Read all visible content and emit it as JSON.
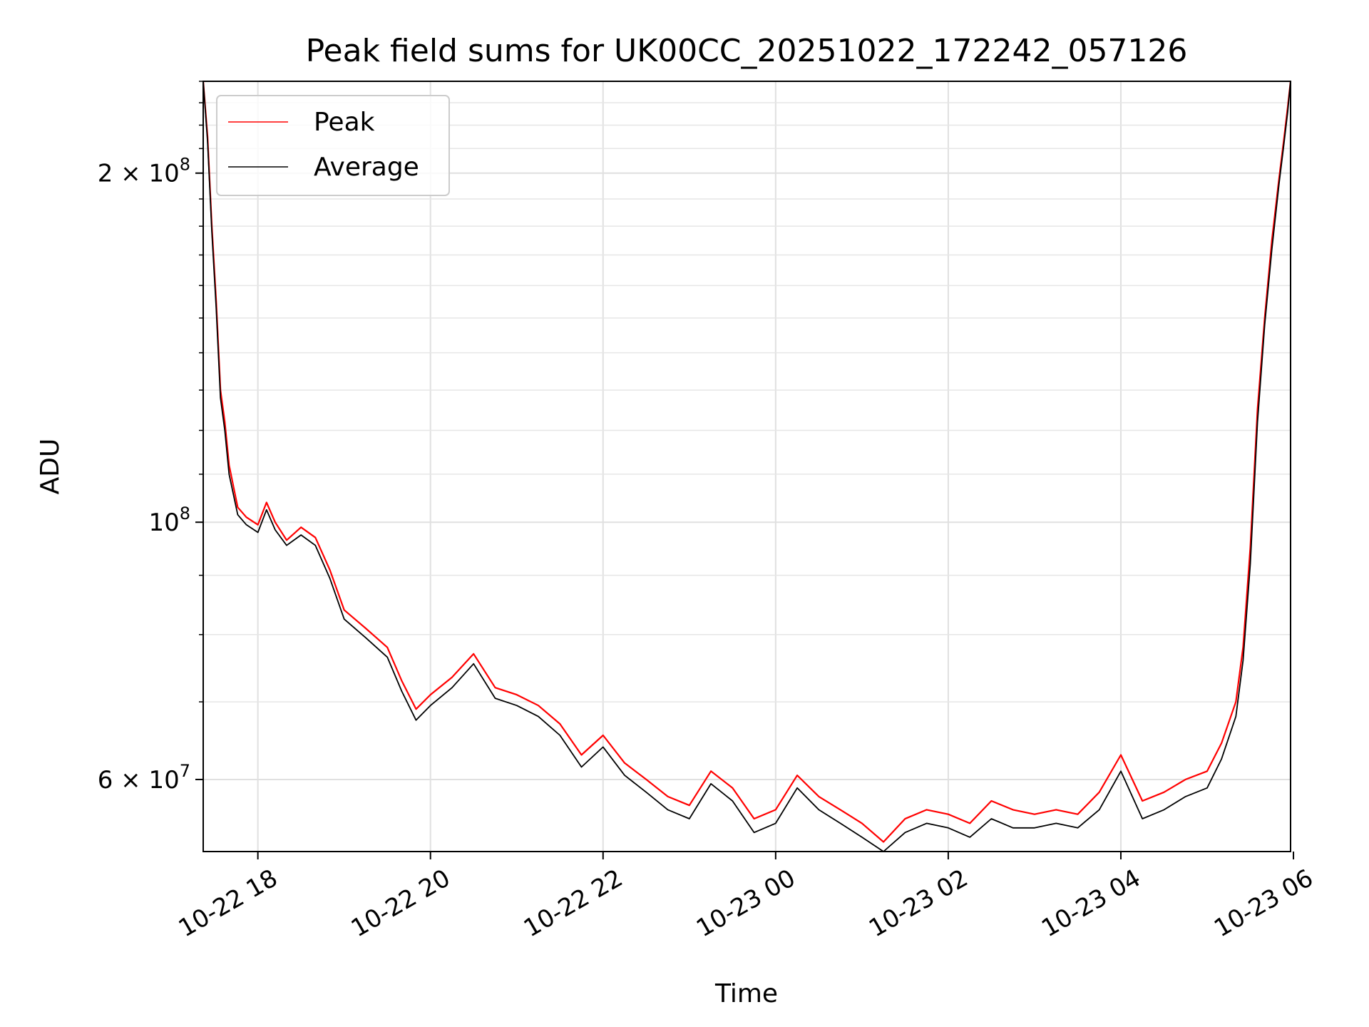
{
  "chart_data": {
    "type": "line",
    "title": "Peak field sums for UK00CC_20251022_172242_057126",
    "xlabel": "Time",
    "ylabel": "ADU",
    "y_scale": "log",
    "xlim": [
      "2025-10-22 17:22",
      "2025-10-23 05:58"
    ],
    "ylim": [
      52000000,
      240000000
    ],
    "grid": true,
    "legend": "upper-left",
    "x_ticks": [
      "10-22 18",
      "10-22 20",
      "10-22 22",
      "10-23 00",
      "10-23 02",
      "10-23 04",
      "10-23 06"
    ],
    "y_ticks": [
      {
        "value": 200000000,
        "base": "2 × 10",
        "exp": "8"
      },
      {
        "value": 100000000,
        "base": "10",
        "exp": "8"
      },
      {
        "value": 60000000,
        "base": "6 × 10",
        "exp": "7"
      }
    ],
    "series": [
      {
        "name": "Peak",
        "color": "#ff0000",
        "x": [
          "2025-10-22 17:22",
          "2025-10-22 17:25",
          "2025-10-22 17:28",
          "2025-10-22 17:31",
          "2025-10-22 17:34",
          "2025-10-22 17:37",
          "2025-10-22 17:40",
          "2025-10-22 17:46",
          "2025-10-22 17:52",
          "2025-10-22 18:00",
          "2025-10-22 18:06",
          "2025-10-22 18:12",
          "2025-10-22 18:20",
          "2025-10-22 18:30",
          "2025-10-22 18:40",
          "2025-10-22 18:50",
          "2025-10-22 19:00",
          "2025-10-22 19:15",
          "2025-10-22 19:30",
          "2025-10-22 19:40",
          "2025-10-22 19:50",
          "2025-10-22 20:00",
          "2025-10-22 20:15",
          "2025-10-22 20:30",
          "2025-10-22 20:45",
          "2025-10-22 21:00",
          "2025-10-22 21:15",
          "2025-10-22 21:30",
          "2025-10-22 21:45",
          "2025-10-22 22:00",
          "2025-10-22 22:15",
          "2025-10-22 22:30",
          "2025-10-22 22:45",
          "2025-10-22 23:00",
          "2025-10-22 23:15",
          "2025-10-22 23:30",
          "2025-10-22 23:45",
          "2025-10-23 00:00",
          "2025-10-23 00:15",
          "2025-10-23 00:30",
          "2025-10-23 00:45",
          "2025-10-23 01:00",
          "2025-10-23 01:15",
          "2025-10-23 01:30",
          "2025-10-23 01:45",
          "2025-10-23 02:00",
          "2025-10-23 02:15",
          "2025-10-23 02:30",
          "2025-10-23 02:45",
          "2025-10-23 03:00",
          "2025-10-23 03:15",
          "2025-10-23 03:30",
          "2025-10-23 03:45",
          "2025-10-23 04:00",
          "2025-10-23 04:15",
          "2025-10-23 04:30",
          "2025-10-23 04:45",
          "2025-10-23 05:00",
          "2025-10-23 05:10",
          "2025-10-23 05:20",
          "2025-10-23 05:25",
          "2025-10-23 05:30",
          "2025-10-23 05:35",
          "2025-10-23 05:40",
          "2025-10-23 05:45",
          "2025-10-23 05:50",
          "2025-10-23 05:53",
          "2025-10-23 05:56",
          "2025-10-23 05:58"
        ],
        "values": [
          240000000,
          215000000,
          180000000,
          155000000,
          130000000,
          122000000,
          112000000,
          103000000,
          101000000,
          99500000,
          104000000,
          100000000,
          96500000,
          99000000,
          97000000,
          91000000,
          84000000,
          81000000,
          78000000,
          73000000,
          69000000,
          71000000,
          73500000,
          77000000,
          72000000,
          71000000,
          69500000,
          67000000,
          63000000,
          65500000,
          62000000,
          60000000,
          58000000,
          57000000,
          61000000,
          59000000,
          55500000,
          56500000,
          60500000,
          58000000,
          56500000,
          55000000,
          53000000,
          55500000,
          56500000,
          56000000,
          55000000,
          57500000,
          56500000,
          56000000,
          56500000,
          56000000,
          58500000,
          63000000,
          57500000,
          58500000,
          60000000,
          61000000,
          64500000,
          70000000,
          78000000,
          95000000,
          125000000,
          150000000,
          175000000,
          198000000,
          212000000,
          228000000,
          240000000
        ]
      },
      {
        "name": "Average",
        "color": "#000000",
        "x": [
          "2025-10-22 17:22",
          "2025-10-22 17:25",
          "2025-10-22 17:28",
          "2025-10-22 17:31",
          "2025-10-22 17:34",
          "2025-10-22 17:37",
          "2025-10-22 17:40",
          "2025-10-22 17:46",
          "2025-10-22 17:52",
          "2025-10-22 18:00",
          "2025-10-22 18:06",
          "2025-10-22 18:12",
          "2025-10-22 18:20",
          "2025-10-22 18:30",
          "2025-10-22 18:40",
          "2025-10-22 18:50",
          "2025-10-22 19:00",
          "2025-10-22 19:15",
          "2025-10-22 19:30",
          "2025-10-22 19:40",
          "2025-10-22 19:50",
          "2025-10-22 20:00",
          "2025-10-22 20:15",
          "2025-10-22 20:30",
          "2025-10-22 20:45",
          "2025-10-22 21:00",
          "2025-10-22 21:15",
          "2025-10-22 21:30",
          "2025-10-22 21:45",
          "2025-10-22 22:00",
          "2025-10-22 22:15",
          "2025-10-22 22:30",
          "2025-10-22 22:45",
          "2025-10-22 23:00",
          "2025-10-22 23:15",
          "2025-10-22 23:30",
          "2025-10-22 23:45",
          "2025-10-23 00:00",
          "2025-10-23 00:15",
          "2025-10-23 00:30",
          "2025-10-23 00:45",
          "2025-10-23 01:00",
          "2025-10-23 01:15",
          "2025-10-23 01:30",
          "2025-10-23 01:45",
          "2025-10-23 02:00",
          "2025-10-23 02:15",
          "2025-10-23 02:30",
          "2025-10-23 02:45",
          "2025-10-23 03:00",
          "2025-10-23 03:15",
          "2025-10-23 03:30",
          "2025-10-23 03:45",
          "2025-10-23 04:00",
          "2025-10-23 04:15",
          "2025-10-23 04:30",
          "2025-10-23 04:45",
          "2025-10-23 05:00",
          "2025-10-23 05:10",
          "2025-10-23 05:20",
          "2025-10-23 05:25",
          "2025-10-23 05:30",
          "2025-10-23 05:35",
          "2025-10-23 05:40",
          "2025-10-23 05:45",
          "2025-10-23 05:50",
          "2025-10-23 05:53",
          "2025-10-23 05:56",
          "2025-10-23 05:58"
        ],
        "values": [
          240000000,
          213000000,
          178000000,
          153000000,
          128000000,
          120000000,
          110000000,
          101500000,
          99500000,
          98000000,
          102500000,
          98500000,
          95500000,
          97500000,
          95500000,
          89500000,
          82500000,
          79500000,
          76500000,
          71500000,
          67500000,
          69500000,
          72000000,
          75500000,
          70500000,
          69500000,
          68000000,
          65500000,
          61500000,
          64000000,
          60500000,
          58500000,
          56500000,
          55500000,
          59500000,
          57500000,
          54000000,
          55000000,
          59000000,
          56500000,
          55000000,
          53500000,
          52000000,
          54000000,
          55000000,
          54500000,
          53500000,
          55500000,
          54500000,
          54500000,
          55000000,
          54500000,
          56500000,
          61000000,
          55500000,
          56500000,
          58000000,
          59000000,
          62500000,
          68000000,
          76000000,
          92000000,
          122000000,
          148000000,
          172000000,
          196000000,
          210000000,
          226000000,
          240000000
        ]
      }
    ]
  }
}
